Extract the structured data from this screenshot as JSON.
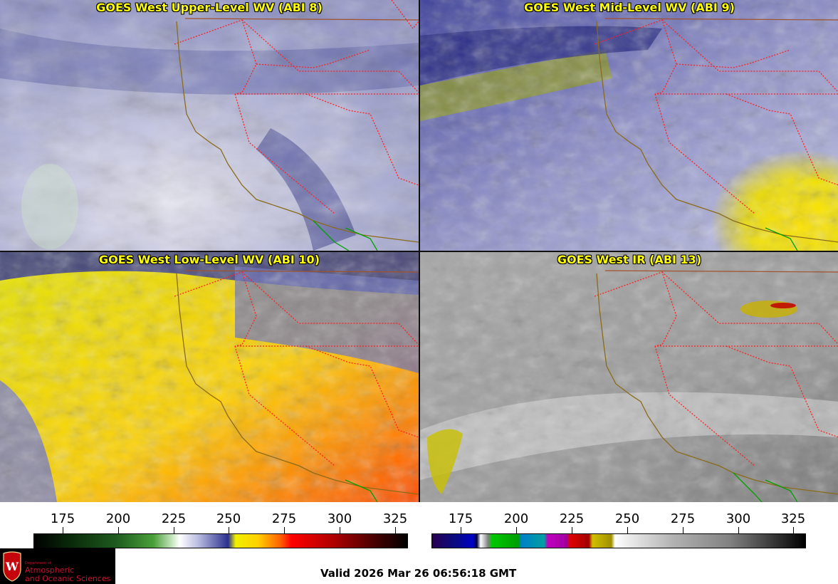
{
  "panels": [
    {
      "title": "GOES West Upper-Level WV (ABI 8)"
    },
    {
      "title": "GOES West Mid-Level WV (ABI 9)"
    },
    {
      "title": "GOES West Low-Level WV (ABI 10)"
    },
    {
      "title": "GOES West IR (ABI 13)"
    }
  ],
  "colorbars": [
    {
      "ticks": [
        "175",
        "200",
        "225",
        "250",
        "275",
        "300",
        "325"
      ]
    },
    {
      "ticks": [
        "175",
        "200",
        "225",
        "250",
        "275",
        "300",
        "325"
      ]
    }
  ],
  "logo": {
    "dept": "Department of",
    "line1": "Atmospheric",
    "line2": "and Oceanic Sciences"
  },
  "valid_time": "Valid 2026 Mar 26 06:56:18 GMT",
  "colors": {
    "title_text": "#ffff00",
    "state_borders": "#ff2020",
    "coastline": "#8b6b1a",
    "mexico_coast": "#00a000"
  }
}
